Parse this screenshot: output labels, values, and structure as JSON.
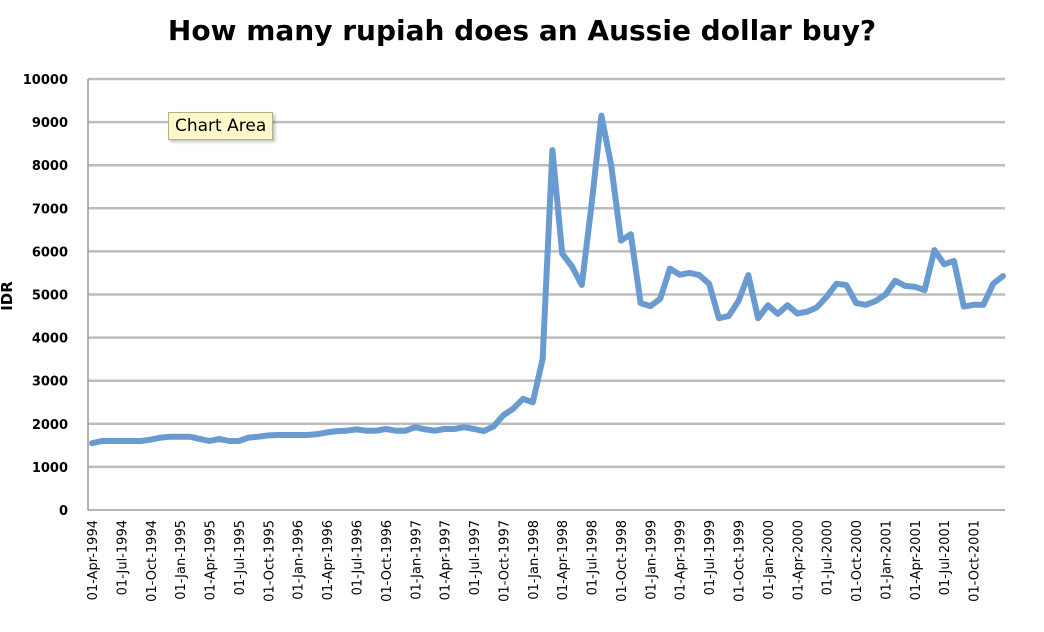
{
  "tooltip": {
    "text": "Chart Area"
  },
  "chart_data": {
    "type": "line",
    "title": "How many rupiah does an Aussie dollar buy?",
    "ylabel": "IDR",
    "xlabel": "",
    "ylim": [
      0,
      10000
    ],
    "yticks": [
      0,
      1000,
      2000,
      3000,
      4000,
      5000,
      6000,
      7000,
      8000,
      9000,
      10000
    ],
    "xtick_labels": [
      "01-Apr-1994",
      "01-Jul-1994",
      "01-Oct-1994",
      "01-Jan-1995",
      "01-Apr-1995",
      "01-Jul-1995",
      "01-Oct-1995",
      "01-Jan-1996",
      "01-Apr-1996",
      "01-Jul-1996",
      "01-Oct-1996",
      "01-Jan-1997",
      "01-Apr-1997",
      "01-Jul-1997",
      "01-Oct-1997",
      "01-Jan-1998",
      "01-Apr-1998",
      "01-Jul-1998",
      "01-Oct-1998",
      "01-Jan-1999",
      "01-Apr-1999",
      "01-Jul-1999",
      "01-Oct-1999",
      "01-Jan-2000",
      "01-Apr-2000",
      "01-Jul-2000",
      "01-Oct-2000",
      "01-Jan-2001",
      "01-Apr-2001",
      "01-Jul-2001",
      "01-Oct-2001"
    ],
    "grid": true,
    "line_color": "#6a9bd0",
    "series": [
      {
        "values": [
          1550,
          1600,
          1600,
          1600,
          1600,
          1600,
          1630,
          1680,
          1700,
          1700,
          1700,
          1650,
          1600,
          1650,
          1600,
          1600,
          1680,
          1700,
          1730,
          1740,
          1740,
          1740,
          1740,
          1760,
          1800,
          1830,
          1840,
          1870,
          1840,
          1840,
          1880,
          1840,
          1840,
          1920,
          1870,
          1840,
          1880,
          1880,
          1920,
          1880,
          1830,
          1940,
          2200,
          2350,
          2580,
          2500,
          3500,
          8350,
          5950,
          5650,
          5220,
          7100,
          9150,
          8000,
          6250,
          6400,
          4800,
          4730,
          4900,
          5600,
          5460,
          5500,
          5450,
          5250,
          4450,
          4500,
          4850,
          5450,
          4450,
          4750,
          4550,
          4750,
          4560,
          4600,
          4700,
          4950,
          5250,
          5220,
          4800,
          4760,
          4850,
          5000,
          5320,
          5200,
          5180,
          5100,
          6030,
          5700,
          5780,
          4720,
          4760,
          4760,
          5250,
          5430
        ]
      }
    ]
  }
}
